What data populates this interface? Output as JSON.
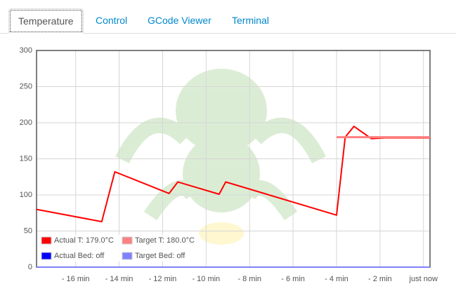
{
  "tabs": [
    "Temperature",
    "Control",
    "GCode Viewer",
    "Terminal"
  ],
  "active_tab": 0,
  "chart_data": {
    "type": "line",
    "x": [
      -17.8,
      -14.8,
      -14.2,
      -11.7,
      -11.3,
      -9.4,
      -9.1,
      -4.0,
      -3.6,
      -3.2,
      -2.4,
      -1.8,
      0.3
    ],
    "series": [
      {
        "name": "Actual T: 179.0°C",
        "color": "#ff0000",
        "values": [
          80,
          63,
          132,
          102,
          118,
          101,
          118,
          72,
          180,
          195,
          178,
          179,
          179
        ]
      },
      {
        "name": "Target T: 180.0°C",
        "color": "#ff8080",
        "values": [
          null,
          null,
          null,
          null,
          null,
          null,
          null,
          180,
          180,
          180,
          180,
          180,
          180
        ]
      },
      {
        "name": "Actual Bed: off",
        "color": "#0000ff",
        "values": [
          0,
          0,
          0,
          0,
          0,
          0,
          0,
          0,
          0,
          0,
          0,
          0,
          0
        ]
      },
      {
        "name": "Target Bed: off",
        "color": "#8080ff",
        "values": [
          0,
          0,
          0,
          0,
          0,
          0,
          0,
          0,
          0,
          0,
          0,
          0,
          0
        ]
      }
    ],
    "xlim": [
      -17.8,
      0.3
    ],
    "xticks": [
      {
        "value": -16,
        "label": "- 16 min"
      },
      {
        "value": -14,
        "label": "- 14 min"
      },
      {
        "value": -12,
        "label": "- 12 min"
      },
      {
        "value": -10,
        "label": "- 10 min"
      },
      {
        "value": -8,
        "label": "- 8 min"
      },
      {
        "value": -6,
        "label": "- 6 min"
      },
      {
        "value": -4,
        "label": "- 4 min"
      },
      {
        "value": -2,
        "label": "- 2 min"
      },
      {
        "value": 0,
        "label": "just now"
      }
    ],
    "ylim": [
      0,
      300
    ],
    "yticks": [
      0,
      50,
      100,
      150,
      200,
      250,
      300
    ],
    "grid": true,
    "legend": "lower left"
  }
}
